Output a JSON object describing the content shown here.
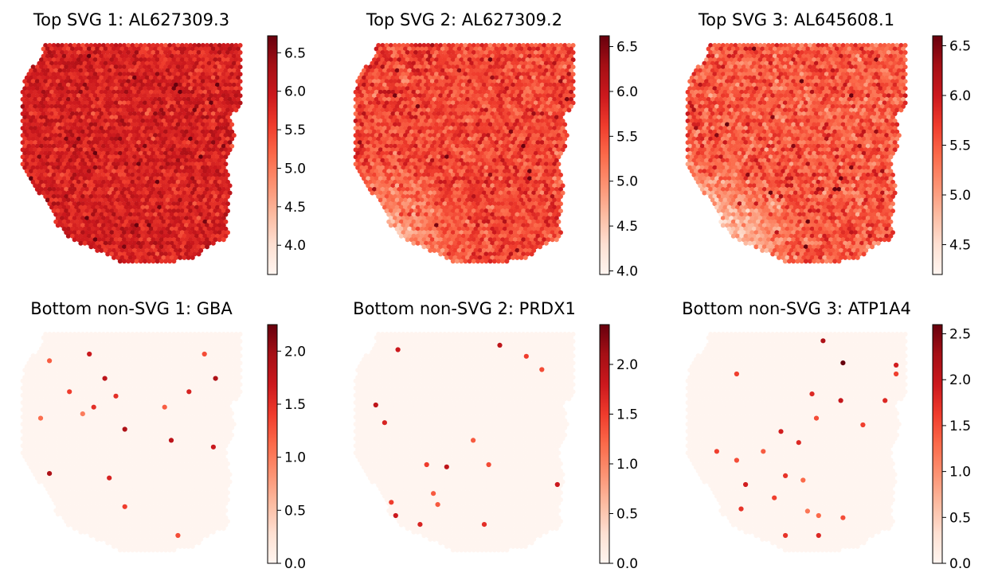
{
  "chart_data": [
    {
      "type": "heatmap",
      "title": "Top SVG 1: AL627309.3",
      "colormap": "Reds",
      "colorbar": {
        "range": [
          3.62,
          6.72
        ],
        "ticks": [
          4.0,
          4.5,
          5.0,
          5.5,
          6.0,
          6.5
        ],
        "tick_labels": [
          "4.0",
          "4.5",
          "5.0",
          "5.5",
          "6.0",
          "6.5"
        ]
      },
      "expression": {
        "mean": 5.85,
        "spread": 0.28,
        "low_region": "none",
        "low_region_value": 5.8,
        "hotspots": []
      }
    },
    {
      "type": "heatmap",
      "title": "Top SVG 2: AL627309.2",
      "colormap": "Reds",
      "colorbar": {
        "range": [
          3.96,
          6.62
        ],
        "ticks": [
          4.0,
          4.5,
          5.0,
          5.5,
          6.0,
          6.5
        ],
        "tick_labels": [
          "4.0",
          "4.5",
          "5.0",
          "5.5",
          "6.0",
          "6.5"
        ]
      },
      "expression": {
        "mean": 5.55,
        "spread": 0.3,
        "low_region": "bottom-left",
        "low_region_value": 4.7,
        "hotspots": []
      }
    },
    {
      "type": "heatmap",
      "title": "Top SVG 3: AL645608.1",
      "colormap": "Reds",
      "colorbar": {
        "range": [
          4.2,
          6.6
        ],
        "ticks": [
          4.5,
          5.0,
          5.5,
          6.0,
          6.5
        ],
        "tick_labels": [
          "4.5",
          "5.0",
          "5.5",
          "6.0",
          "6.5"
        ]
      },
      "expression": {
        "mean": 5.5,
        "spread": 0.3,
        "low_region": "bottom-left",
        "low_region_value": 4.6,
        "hotspots": []
      }
    },
    {
      "type": "heatmap",
      "title": "Bottom non-SVG 1: GBA",
      "colormap": "Reds",
      "colorbar": {
        "range": [
          0.0,
          2.25
        ],
        "ticks": [
          0.0,
          0.5,
          1.0,
          1.5,
          2.0
        ],
        "tick_labels": [
          "0.0",
          "0.5",
          "1.0",
          "1.5",
          "2.0"
        ]
      },
      "expression": {
        "baseline": 0.0,
        "hotspots": [
          [
            0.13,
            0.12,
            1.2
          ],
          [
            0.31,
            0.09,
            1.7
          ],
          [
            0.38,
            0.2,
            1.8
          ],
          [
            0.22,
            0.26,
            1.4
          ],
          [
            0.43,
            0.28,
            1.5
          ],
          [
            0.28,
            0.36,
            1.0
          ],
          [
            0.47,
            0.43,
            1.9
          ],
          [
            0.83,
            0.09,
            1.3
          ],
          [
            0.88,
            0.2,
            1.9
          ],
          [
            0.76,
            0.26,
            1.6
          ],
          [
            0.65,
            0.33,
            1.2
          ],
          [
            0.68,
            0.48,
            1.8
          ],
          [
            0.87,
            0.51,
            1.7
          ],
          [
            0.13,
            0.63,
            1.9
          ],
          [
            0.4,
            0.65,
            1.6
          ],
          [
            0.71,
            0.91,
            1.3
          ],
          [
            0.47,
            0.78,
            1.4
          ],
          [
            0.33,
            0.33,
            1.5
          ],
          [
            0.09,
            0.38,
            1.1
          ]
        ]
      }
    },
    {
      "type": "heatmap",
      "title": "Bottom non-SVG 2: PRDX1",
      "colormap": "Reds",
      "colorbar": {
        "range": [
          0.0,
          2.4
        ],
        "ticks": [
          0.0,
          0.5,
          1.0,
          1.5,
          2.0
        ],
        "tick_labels": [
          "0.0",
          "0.5",
          "1.0",
          "1.5",
          "2.0"
        ]
      },
      "expression": {
        "baseline": 0.0,
        "hotspots": [
          [
            0.2,
            0.07,
            1.8
          ],
          [
            0.66,
            0.05,
            1.9
          ],
          [
            0.78,
            0.1,
            1.5
          ],
          [
            0.1,
            0.32,
            1.9
          ],
          [
            0.14,
            0.4,
            1.7
          ],
          [
            0.42,
            0.6,
            1.9
          ],
          [
            0.33,
            0.59,
            1.5
          ],
          [
            0.61,
            0.59,
            1.4
          ],
          [
            0.92,
            0.68,
            1.8
          ],
          [
            0.36,
            0.72,
            1.3
          ],
          [
            0.17,
            0.76,
            1.5
          ],
          [
            0.3,
            0.86,
            1.7
          ],
          [
            0.38,
            0.77,
            1.3
          ],
          [
            0.59,
            0.86,
            1.6
          ],
          [
            0.19,
            0.82,
            1.8
          ],
          [
            0.85,
            0.16,
            1.4
          ],
          [
            0.54,
            0.48,
            1.3
          ]
        ]
      }
    },
    {
      "type": "heatmap",
      "title": "Bottom non-SVG 3: ATP1A4",
      "colormap": "Reds",
      "colorbar": {
        "range": [
          0.0,
          2.6
        ],
        "ticks": [
          0.0,
          0.5,
          1.0,
          1.5,
          2.0,
          2.5
        ],
        "tick_labels": [
          "0.0",
          "0.5",
          "1.0",
          "1.5",
          "2.0",
          "2.5"
        ]
      },
      "expression": {
        "baseline": 0.0,
        "hotspots": [
          [
            0.62,
            0.03,
            2.2
          ],
          [
            0.71,
            0.13,
            2.6
          ],
          [
            0.95,
            0.14,
            1.9
          ],
          [
            0.23,
            0.18,
            1.6
          ],
          [
            0.57,
            0.27,
            1.8
          ],
          [
            0.7,
            0.3,
            2.0
          ],
          [
            0.9,
            0.3,
            1.8
          ],
          [
            0.59,
            0.38,
            1.5
          ],
          [
            0.8,
            0.41,
            1.6
          ],
          [
            0.43,
            0.44,
            1.9
          ],
          [
            0.51,
            0.49,
            1.8
          ],
          [
            0.35,
            0.53,
            1.4
          ],
          [
            0.45,
            0.64,
            1.7
          ],
          [
            0.23,
            0.57,
            1.5
          ],
          [
            0.27,
            0.68,
            1.9
          ],
          [
            0.53,
            0.66,
            1.3
          ],
          [
            0.4,
            0.74,
            1.6
          ],
          [
            0.25,
            0.79,
            1.7
          ],
          [
            0.55,
            0.8,
            1.2
          ],
          [
            0.6,
            0.82,
            1.3
          ],
          [
            0.71,
            0.83,
            1.5
          ],
          [
            0.6,
            0.91,
            1.8
          ],
          [
            0.45,
            0.91,
            1.7
          ],
          [
            0.14,
            0.53,
            1.6
          ],
          [
            0.95,
            0.18,
            1.6
          ]
        ]
      }
    }
  ]
}
